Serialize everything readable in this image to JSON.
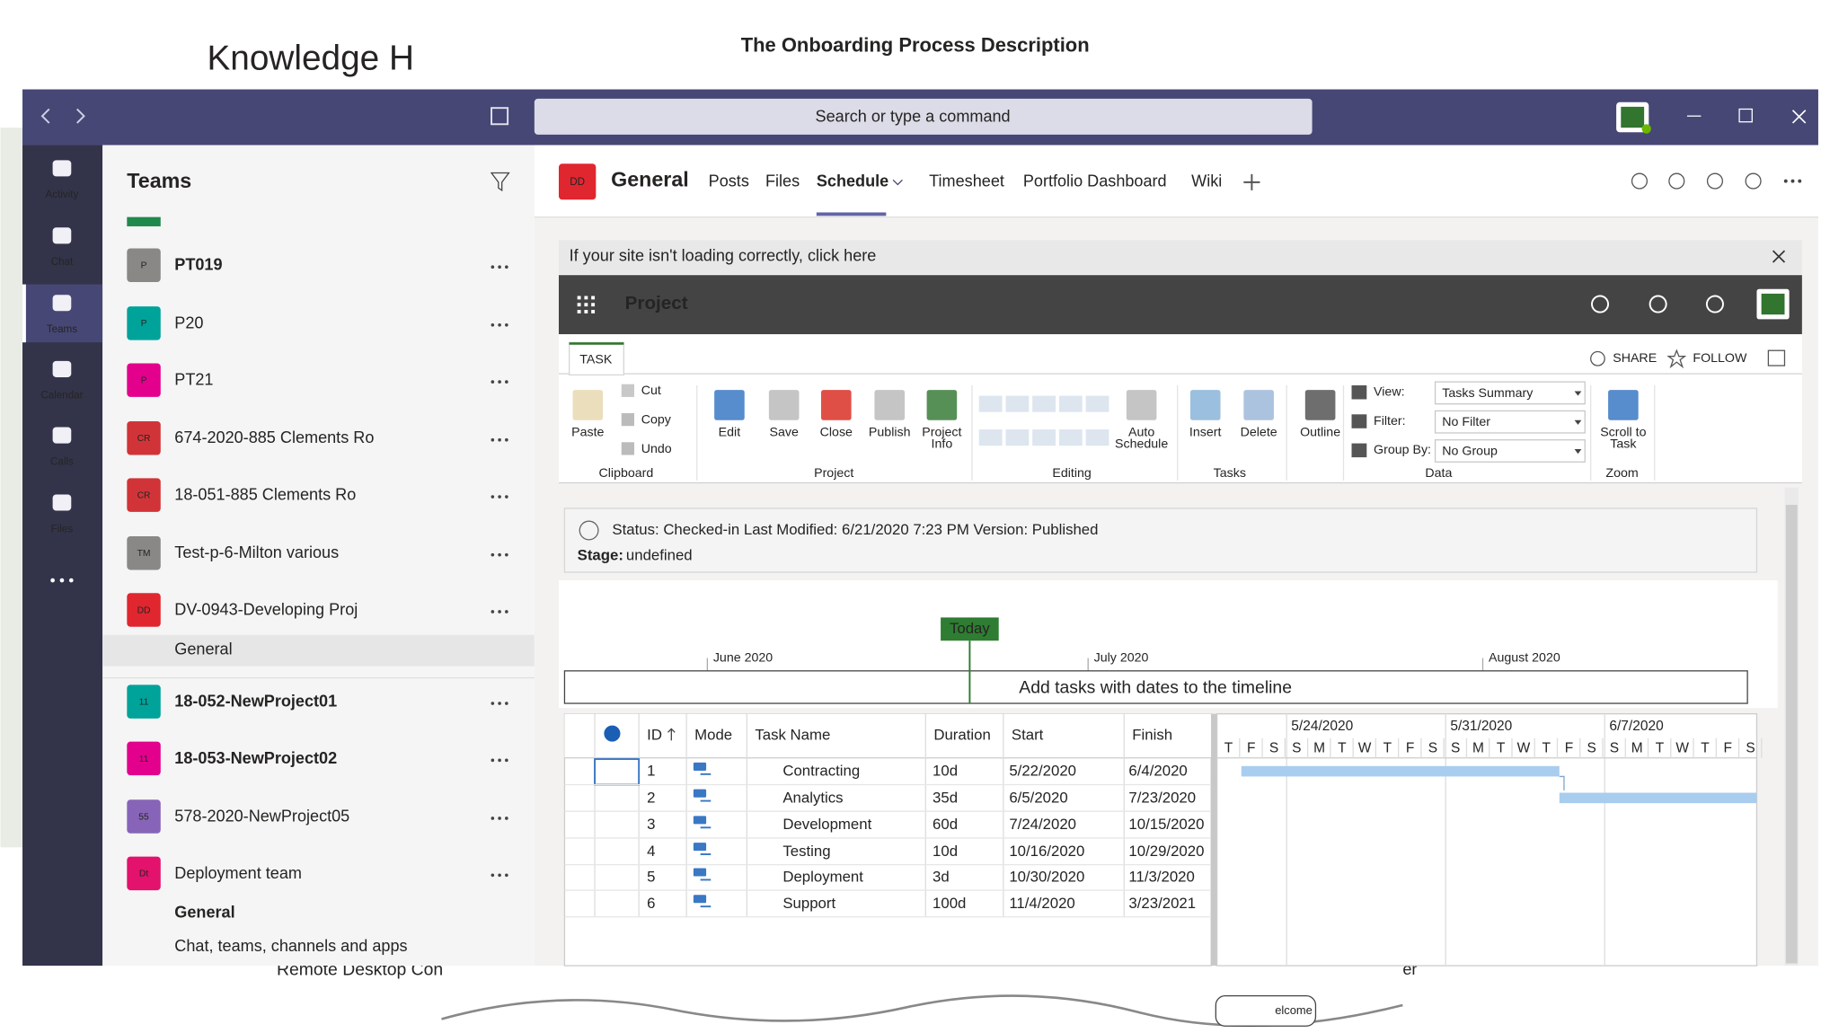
{
  "background": {
    "title": "Knowledge H",
    "document_title": "The Onboarding Process Description",
    "footer_text": "Remote Desktop Con",
    "footer_right": "er",
    "diagram_label": "elcome"
  },
  "search_placeholder": "Search or type a command",
  "rail": [
    "Activity",
    "Chat",
    "Teams",
    "Calendar",
    "Calls",
    "Files"
  ],
  "teams_panel": {
    "title": "Teams",
    "items": [
      {
        "avatar": "P",
        "name": "PT019"
      },
      {
        "avatar": "P",
        "name": "P20"
      },
      {
        "avatar": "P",
        "name": "PT21"
      },
      {
        "avatar": "CR",
        "name": "674-2020-885 Clements Ro"
      },
      {
        "avatar": "CR",
        "name": "18-051-885 Clements Ro"
      },
      {
        "avatar": "TM",
        "name": "Test-p-6-Milton various"
      },
      {
        "avatar": "DD",
        "name": "DV-0943-Developing Proj"
      },
      {
        "avatar": "11",
        "name": "18-052-NewProject01"
      },
      {
        "avatar": "11",
        "name": "18-053-NewProject02"
      },
      {
        "avatar": "55",
        "name": "578-2020-NewProject05"
      },
      {
        "avatar": "Dt",
        "name": "Deployment team"
      }
    ],
    "selected_channel": "General",
    "deployment_channel": "General",
    "footer": "Chat, teams, channels and apps"
  },
  "channel": {
    "avatar": "DD",
    "name": "General",
    "tabs": [
      "Posts",
      "Files",
      "Schedule",
      "Timesheet",
      "Portfolio Dashboard",
      "Wiki"
    ]
  },
  "banner": "If your site isn't loading correctly, click here",
  "app_title": "Project",
  "ribbon": {
    "tab": "TASK",
    "share": "SHARE",
    "follow": "FOLLOW",
    "small_buttons": [
      "Cut",
      "Copy",
      "Undo"
    ],
    "buttons": [
      [
        "Paste"
      ],
      [
        "Edit"
      ],
      [
        "Save"
      ],
      [
        "Close"
      ],
      [
        "Publish"
      ],
      [
        "Project",
        "Info"
      ],
      [
        "Auto",
        "Schedule"
      ],
      [
        "Insert"
      ],
      [
        "Delete"
      ],
      [
        "Outline"
      ],
      [
        "Scroll to",
        "Task"
      ]
    ],
    "filters": [
      {
        "label": "View:",
        "value": "Tasks Summary"
      },
      {
        "label": "Filter:",
        "value": "No Filter"
      },
      {
        "label": "Group By:",
        "value": "No Group"
      }
    ],
    "groups": [
      "Clipboard",
      "Project",
      "Editing",
      "Tasks",
      "Data",
      "Zoom"
    ]
  },
  "status": {
    "line": "Status: Checked-in Last Modified: 6/21/2020 7:23 PM Version: Published",
    "stage_label": "Stage:",
    "stage_value": "undefined"
  },
  "timeline": {
    "today": "Today",
    "months": [
      "June 2020",
      "July 2020",
      "August 2020"
    ],
    "placeholder": "Add tasks with dates to the timeline"
  },
  "grid": {
    "columns": [
      "ID",
      "Mode",
      "Task Name",
      "Duration",
      "Start",
      "Finish"
    ],
    "rows": [
      {
        "id": 1,
        "name": "Contracting",
        "duration": "10d",
        "start": "5/22/2020",
        "finish": "6/4/2020"
      },
      {
        "id": 2,
        "name": "Analytics",
        "duration": "35d",
        "start": "6/5/2020",
        "finish": "7/23/2020"
      },
      {
        "id": 3,
        "name": "Development",
        "duration": "60d",
        "start": "7/24/2020",
        "finish": "10/15/2020"
      },
      {
        "id": 4,
        "name": "Testing",
        "duration": "10d",
        "start": "10/16/2020",
        "finish": "10/29/2020"
      },
      {
        "id": 5,
        "name": "Deployment",
        "duration": "3d",
        "start": "10/30/2020",
        "finish": "11/3/2020"
      },
      {
        "id": 6,
        "name": "Support",
        "duration": "100d",
        "start": "11/4/2020",
        "finish": "3/23/2021"
      }
    ]
  },
  "gantt": {
    "weeks": [
      "5/24/2020",
      "5/31/2020",
      "6/7/2020"
    ],
    "days": [
      "T",
      "F",
      "S",
      "S",
      "M",
      "T",
      "W",
      "T",
      "F",
      "S",
      "S",
      "M",
      "T",
      "W",
      "T",
      "F",
      "S",
      "S",
      "M",
      "T",
      "W",
      "T",
      "F",
      "S"
    ]
  }
}
